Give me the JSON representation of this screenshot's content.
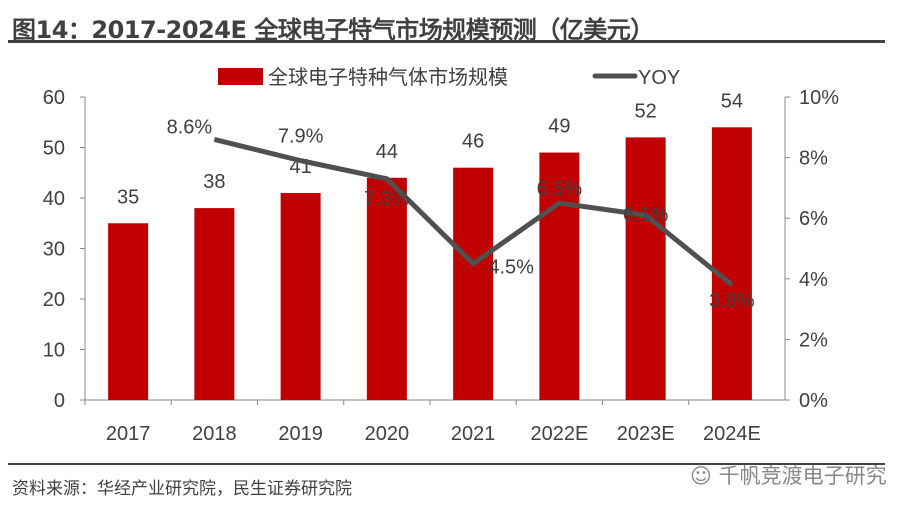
{
  "header": {
    "title": "图14：2017-2024E 全球电子特气市场规模预测（亿美元）"
  },
  "footer": {
    "source": "资料来源：华经产业研究院，民生证券研究院",
    "watermark": "千帆竞渡电子研究"
  },
  "colors": {
    "bar": "#C00000",
    "line": "#505050",
    "text": "#404040"
  },
  "chart_data": {
    "type": "bar+line",
    "categories": [
      "2017",
      "2018",
      "2019",
      "2020",
      "2021",
      "2022E",
      "2023E",
      "2024E"
    ],
    "series": [
      {
        "name": "全球电子特种气体市场规模",
        "type": "bar",
        "axis": "left",
        "values": [
          35,
          38,
          41,
          44,
          46,
          49,
          52,
          54
        ],
        "labels": [
          "35",
          "38",
          "41",
          "44",
          "46",
          "49",
          "52",
          "54"
        ]
      },
      {
        "name": "YOY",
        "type": "line",
        "axis": "right",
        "values": [
          null,
          8.6,
          7.9,
          7.3,
          4.5,
          6.5,
          6.1,
          3.8
        ],
        "labels": [
          "",
          "8.6%",
          "7.9%",
          "7.3%",
          "4.5%",
          "6.5%",
          "6.1%",
          "3.8%"
        ]
      }
    ],
    "left_axis": {
      "ylim": [
        0,
        60
      ],
      "ticks": [
        "0",
        "10",
        "20",
        "30",
        "40",
        "50",
        "60"
      ]
    },
    "right_axis": {
      "ylim": [
        0,
        10
      ],
      "ticks": [
        "0%",
        "2%",
        "4%",
        "6%",
        "8%",
        "10%"
      ]
    },
    "legend": "top-center",
    "grid": false
  }
}
